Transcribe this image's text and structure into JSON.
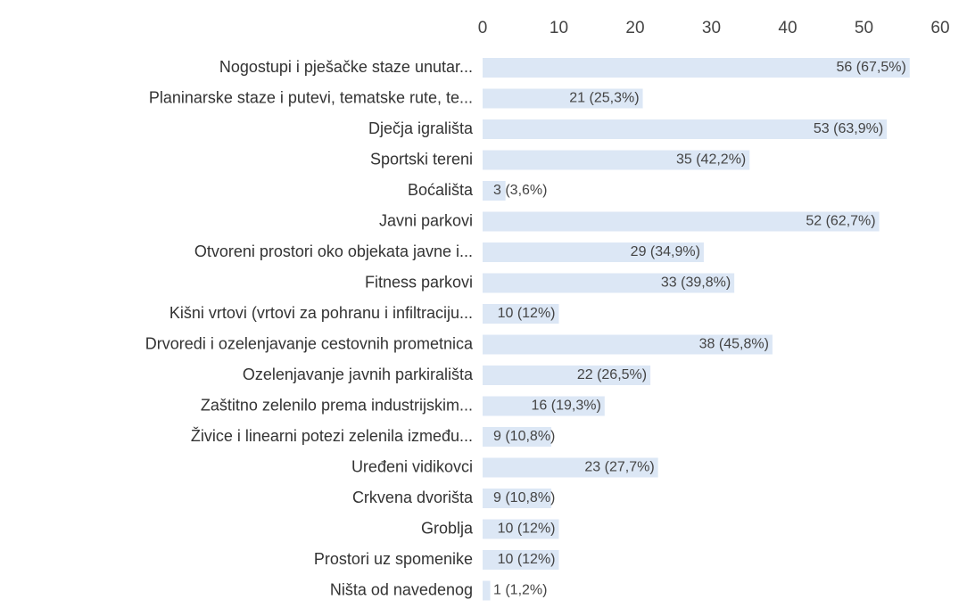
{
  "chart_data": {
    "type": "bar",
    "orientation": "horizontal",
    "categories": [
      "Nogostupi i pješačke staze unutar...",
      "Planinarske staze i putevi, tematske rute, te...",
      "Dječja igrališta",
      "Sportski tereni",
      "Boćališta",
      "Javni parkovi",
      "Otvoreni prostori oko objekata javne i...",
      "Fitness parkovi",
      "Kišni vrtovi (vrtovi za pohranu i infiltraciju...",
      "Drvoredi i ozelenjavanje cestovnih prometnica",
      "Ozelenjavanje javnih parkirališta",
      "Zaštitno zelenilo prema industrijskim...",
      "Živice i linearni potezi zelenila između...",
      "Uređeni vidikovci",
      "Crkvena dvorišta",
      "Groblja",
      "Prostori uz spomenike",
      "Ništa od navedenog"
    ],
    "values": [
      56,
      21,
      53,
      35,
      3,
      52,
      29,
      33,
      10,
      38,
      22,
      16,
      9,
      23,
      9,
      10,
      10,
      1
    ],
    "value_labels": [
      "56 (67,5%)",
      "21 (25,3%)",
      "53 (63,9%)",
      "35 (42,2%)",
      "3 (3,6%)",
      "52 (62,7%)",
      "29 (34,9%)",
      "33 (39,8%)",
      "10 (12%)",
      "38 (45,8%)",
      "22 (26,5%)",
      "16 (19,3%)",
      "9 (10,8%)",
      "23 (27,7%)",
      "9 (10,8%)",
      "10 (12%)",
      "10 (12%)",
      "1 (1,2%)"
    ],
    "color": "#dce7f5",
    "xlim": [
      0,
      60
    ],
    "xticks": [
      0,
      10,
      20,
      30,
      40,
      50,
      60
    ]
  }
}
